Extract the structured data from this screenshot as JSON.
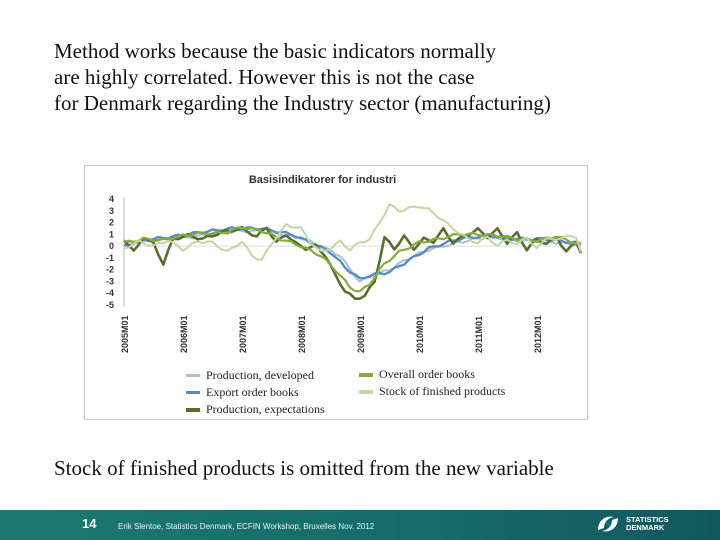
{
  "slide": {
    "heading_lines": [
      "Method works because the basic indicators  normally",
      "are highly correlated. However this is not the case",
      "for Denmark regarding the Industry sector (manufacturing)"
    ],
    "bottom_text": "Stock of finished products is omitted from the new variable",
    "page_number": "14",
    "credits": "Erik Slentoe, Statistics Denmark, ECFIN Workshop, Bruxelles Nov. 2012",
    "logo_line1": "STATISTICS",
    "logo_line2": "DENMARK"
  },
  "chart_data": {
    "type": "line",
    "title": "Basisindikatorer for industri",
    "ylim": [
      -5,
      4
    ],
    "y_ticks": [
      "4",
      "3",
      "2",
      "1",
      "0",
      "-1",
      "-2",
      "-3",
      "-4",
      "-5"
    ],
    "x_ticks": [
      "2005M01",
      "2006M01",
      "2007M01",
      "2008M01",
      "2009M01",
      "2010M01",
      "2011M01",
      "2012M01"
    ],
    "n_months": 94,
    "series": [
      {
        "name": "Production, developed",
        "color": "#a9bfd6",
        "width": 2,
        "anchors": [
          [
            0,
            0.2
          ],
          [
            6,
            0.5
          ],
          [
            12,
            0.7
          ],
          [
            18,
            1.0
          ],
          [
            24,
            1.3
          ],
          [
            30,
            1.2
          ],
          [
            36,
            0.7
          ],
          [
            40,
            0.0
          ],
          [
            44,
            -0.8
          ],
          [
            46,
            -2.0
          ],
          [
            48,
            -3.0
          ],
          [
            50,
            -2.6
          ],
          [
            54,
            -2.0
          ],
          [
            58,
            -1.0
          ],
          [
            62,
            -0.3
          ],
          [
            68,
            0.3
          ],
          [
            74,
            0.8
          ],
          [
            80,
            0.5
          ],
          [
            86,
            0.4
          ],
          [
            93,
            0.1
          ]
        ]
      },
      {
        "name": "Export order books",
        "color": "#5a8cc6",
        "width": 2.4,
        "anchors": [
          [
            0,
            0.0
          ],
          [
            4,
            0.5
          ],
          [
            10,
            0.8
          ],
          [
            16,
            1.2
          ],
          [
            22,
            1.5
          ],
          [
            28,
            1.5
          ],
          [
            34,
            1.0
          ],
          [
            38,
            0.3
          ],
          [
            42,
            -0.5
          ],
          [
            45,
            -1.8
          ],
          [
            48,
            -2.8
          ],
          [
            50,
            -2.5
          ],
          [
            54,
            -2.2
          ],
          [
            58,
            -1.2
          ],
          [
            62,
            -0.2
          ],
          [
            68,
            0.6
          ],
          [
            74,
            0.9
          ],
          [
            80,
            0.6
          ],
          [
            86,
            0.6
          ],
          [
            93,
            0.2
          ]
        ]
      },
      {
        "name": "Production, expectations",
        "color": "#596e2e",
        "width": 2.6,
        "anchors": [
          [
            0,
            0.6
          ],
          [
            2,
            -0.5
          ],
          [
            4,
            0.8
          ],
          [
            6,
            0.2
          ],
          [
            8,
            -1.5
          ],
          [
            10,
            0.6
          ],
          [
            13,
            0.9
          ],
          [
            16,
            0.6
          ],
          [
            20,
            1.2
          ],
          [
            24,
            1.5
          ],
          [
            27,
            0.8
          ],
          [
            29,
            1.6
          ],
          [
            31,
            0.3
          ],
          [
            33,
            1.0
          ],
          [
            35,
            0.2
          ],
          [
            37,
            -0.2
          ],
          [
            39,
            0.0
          ],
          [
            41,
            -0.8
          ],
          [
            43,
            -2.5
          ],
          [
            45,
            -3.8
          ],
          [
            47,
            -4.5
          ],
          [
            49,
            -4.2
          ],
          [
            51,
            -3.0
          ],
          [
            52,
            -1.2
          ],
          [
            53,
            0.7
          ],
          [
            55,
            -0.2
          ],
          [
            57,
            0.8
          ],
          [
            59,
            -0.2
          ],
          [
            61,
            0.6
          ],
          [
            63,
            0.4
          ],
          [
            65,
            1.4
          ],
          [
            67,
            0.3
          ],
          [
            69,
            0.8
          ],
          [
            72,
            1.4
          ],
          [
            74,
            0.8
          ],
          [
            76,
            1.4
          ],
          [
            78,
            0.3
          ],
          [
            80,
            1.1
          ],
          [
            82,
            -0.3
          ],
          [
            84,
            0.6
          ],
          [
            86,
            0.2
          ],
          [
            88,
            0.8
          ],
          [
            90,
            -0.5
          ],
          [
            92,
            0.4
          ],
          [
            93,
            -0.5
          ]
        ]
      },
      {
        "name": "Overall order books",
        "color": "#86ab3e",
        "width": 2.2,
        "anchors": [
          [
            0,
            0.3
          ],
          [
            4,
            0.6
          ],
          [
            8,
            0.5
          ],
          [
            12,
            0.9
          ],
          [
            16,
            1.1
          ],
          [
            20,
            1.1
          ],
          [
            24,
            1.6
          ],
          [
            28,
            1.3
          ],
          [
            32,
            0.6
          ],
          [
            36,
            0.0
          ],
          [
            40,
            -0.8
          ],
          [
            43,
            -2.0
          ],
          [
            46,
            -3.5
          ],
          [
            48,
            -3.9
          ],
          [
            50,
            -3.2
          ],
          [
            53,
            -1.5
          ],
          [
            56,
            -0.5
          ],
          [
            60,
            0.3
          ],
          [
            64,
            0.6
          ],
          [
            68,
            1.0
          ],
          [
            72,
            1.0
          ],
          [
            76,
            0.9
          ],
          [
            80,
            0.6
          ],
          [
            84,
            0.5
          ],
          [
            88,
            0.8
          ],
          [
            93,
            0.1
          ]
        ]
      },
      {
        "name": "Stock of finished products",
        "color": "#c2d6a4",
        "width": 2,
        "anchors": [
          [
            0,
            -0.2
          ],
          [
            3,
            0.4
          ],
          [
            6,
            0.0
          ],
          [
            9,
            0.5
          ],
          [
            12,
            -0.3
          ],
          [
            15,
            0.4
          ],
          [
            18,
            0.3
          ],
          [
            21,
            -0.5
          ],
          [
            24,
            0.4
          ],
          [
            26,
            -0.8
          ],
          [
            28,
            -1.2
          ],
          [
            30,
            0.2
          ],
          [
            33,
            1.8
          ],
          [
            36,
            1.5
          ],
          [
            38,
            0.3
          ],
          [
            40,
            -0.5
          ],
          [
            42,
            -0.2
          ],
          [
            44,
            0.4
          ],
          [
            46,
            -0.3
          ],
          [
            48,
            0.3
          ],
          [
            50,
            0.6
          ],
          [
            52,
            2.0
          ],
          [
            54,
            3.5
          ],
          [
            56,
            3.0
          ],
          [
            58,
            3.2
          ],
          [
            60,
            3.4
          ],
          [
            62,
            3.1
          ],
          [
            64,
            2.5
          ],
          [
            66,
            1.8
          ],
          [
            68,
            1.2
          ],
          [
            70,
            0.6
          ],
          [
            72,
            0.3
          ],
          [
            74,
            0.8
          ],
          [
            76,
            0.0
          ],
          [
            78,
            0.6
          ],
          [
            80,
            0.1
          ],
          [
            82,
            0.8
          ],
          [
            84,
            -0.3
          ],
          [
            86,
            0.8
          ],
          [
            88,
            0.4
          ],
          [
            90,
            1.0
          ],
          [
            92,
            0.6
          ],
          [
            93,
            -0.4
          ]
        ]
      }
    ],
    "legend_left": [
      {
        "label": "Production, developed",
        "color": "#a9bfd6"
      },
      {
        "label": "Export order books",
        "color": "#5a8cc6"
      },
      {
        "label": "Production, expectations",
        "color": "#596e2e"
      }
    ],
    "legend_right": [
      {
        "label": "Overall order books",
        "color": "#86ab3e"
      },
      {
        "label": "Stock of finished products",
        "color": "#c2d6a4"
      }
    ]
  }
}
